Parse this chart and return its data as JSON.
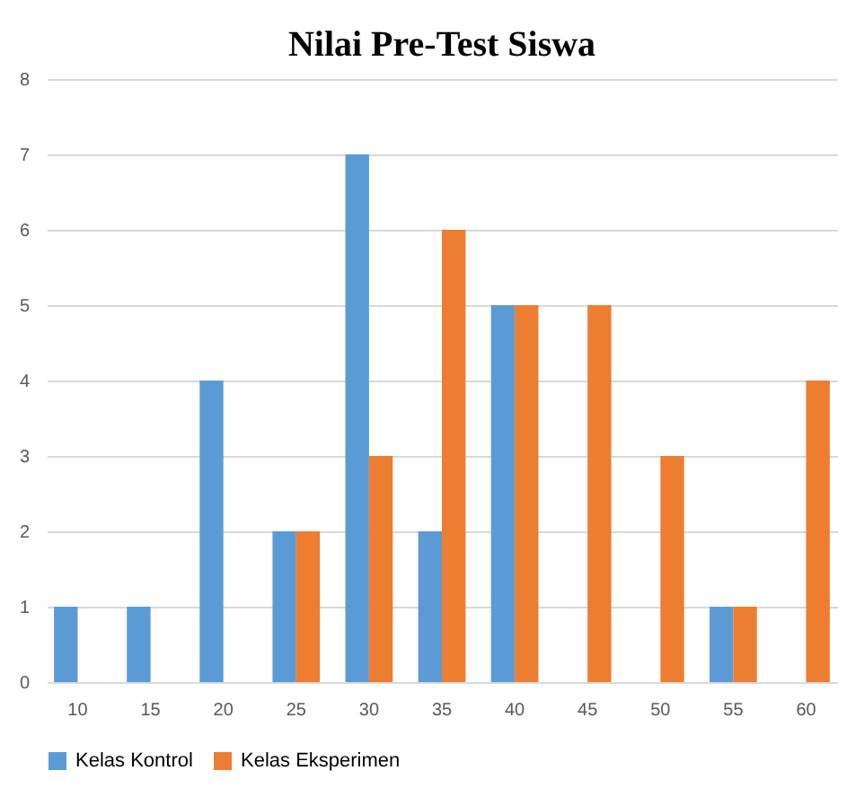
{
  "chart_data": {
    "type": "bar",
    "title": "Nilai Pre-Test Siswa",
    "categories": [
      "10",
      "15",
      "20",
      "25",
      "30",
      "35",
      "40",
      "45",
      "50",
      "55",
      "60"
    ],
    "series": [
      {
        "name": "Kelas Kontrol",
        "color": "#5b9bd5",
        "values": [
          1,
          1,
          4,
          2,
          7,
          2,
          5,
          0,
          0,
          1,
          0
        ]
      },
      {
        "name": "Kelas Eksperimen",
        "color": "#ed7d31",
        "values": [
          0,
          0,
          0,
          2,
          3,
          6,
          5,
          5,
          3,
          1,
          4
        ]
      }
    ],
    "ylim": [
      0,
      8
    ],
    "yticks": [
      0,
      1,
      2,
      3,
      4,
      5,
      6,
      7,
      8
    ],
    "grid": "y",
    "legend": "bottom"
  }
}
